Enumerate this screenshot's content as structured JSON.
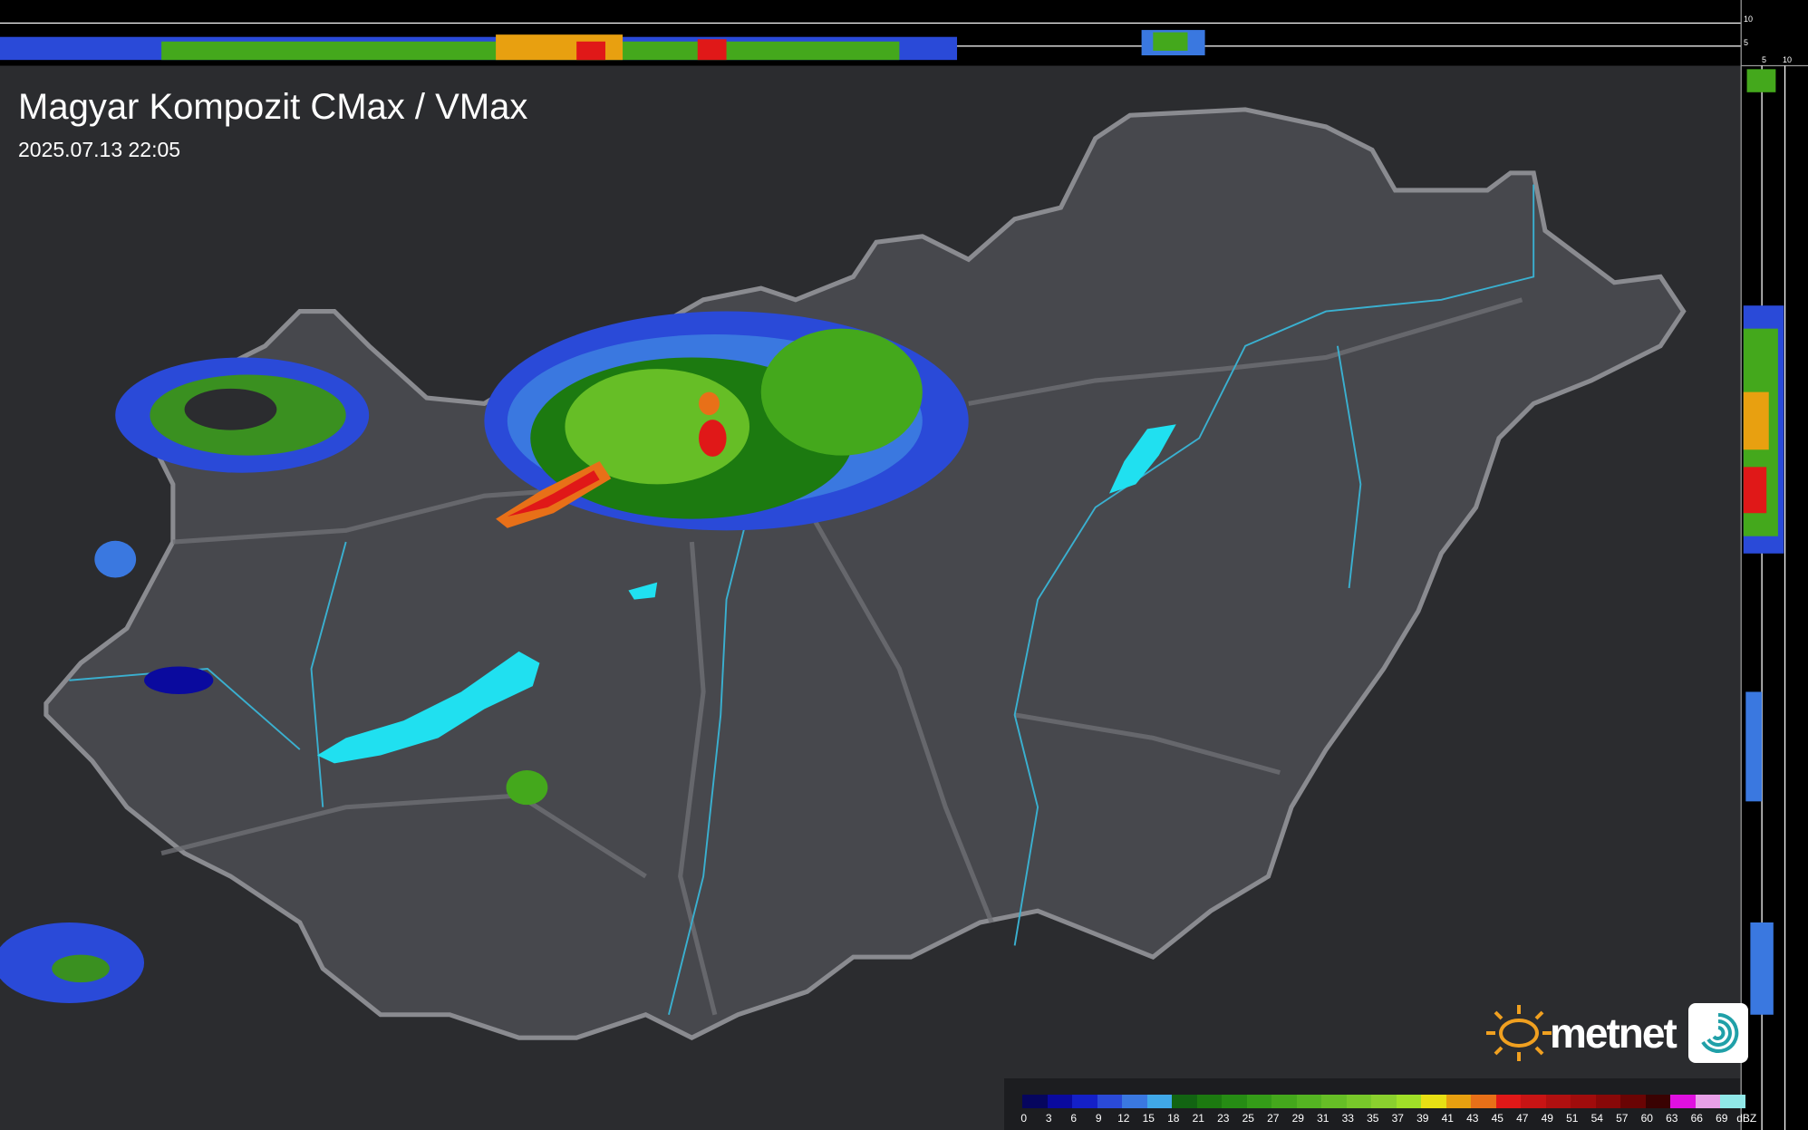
{
  "title": "Magyar Kompozit CMax / VMax",
  "timestamp": "2025.07.13 22:05",
  "legend": {
    "unit": "dBZ",
    "labels": [
      "0",
      "3",
      "6",
      "9",
      "12",
      "15",
      "18",
      "21",
      "23",
      "25",
      "27",
      "29",
      "31",
      "33",
      "35",
      "37",
      "39",
      "41",
      "43",
      "45",
      "47",
      "49",
      "51",
      "54",
      "57",
      "60",
      "63",
      "66",
      "69"
    ],
    "colors": [
      "#06065e",
      "#0a0a9e",
      "#1420c8",
      "#2a4ad8",
      "#3a78e0",
      "#40a8e8",
      "#126412",
      "#1c7a10",
      "#268c14",
      "#349c18",
      "#44a81c",
      "#54b422",
      "#66be26",
      "#78c82a",
      "#8ad02e",
      "#a0e028",
      "#e8e014",
      "#e8a010",
      "#e87018",
      "#e01818",
      "#c81414",
      "#b01010",
      "#a00c0c",
      "#880808",
      "#6a0404",
      "#3a0202",
      "#e010e0",
      "#e8a0e8",
      "#90e8e8"
    ]
  },
  "scales": {
    "top_ticks": [
      "10",
      "5"
    ],
    "side_ticks": [
      "5",
      "10"
    ]
  },
  "brand": {
    "name": "metnet",
    "sun_color": "#f0a020"
  },
  "colors": {
    "background": "#2b2c2f",
    "country": "#4a4b50",
    "border": "#8a8b90",
    "rivers": "#3ab0d0",
    "lakes": "#20e0f0"
  }
}
